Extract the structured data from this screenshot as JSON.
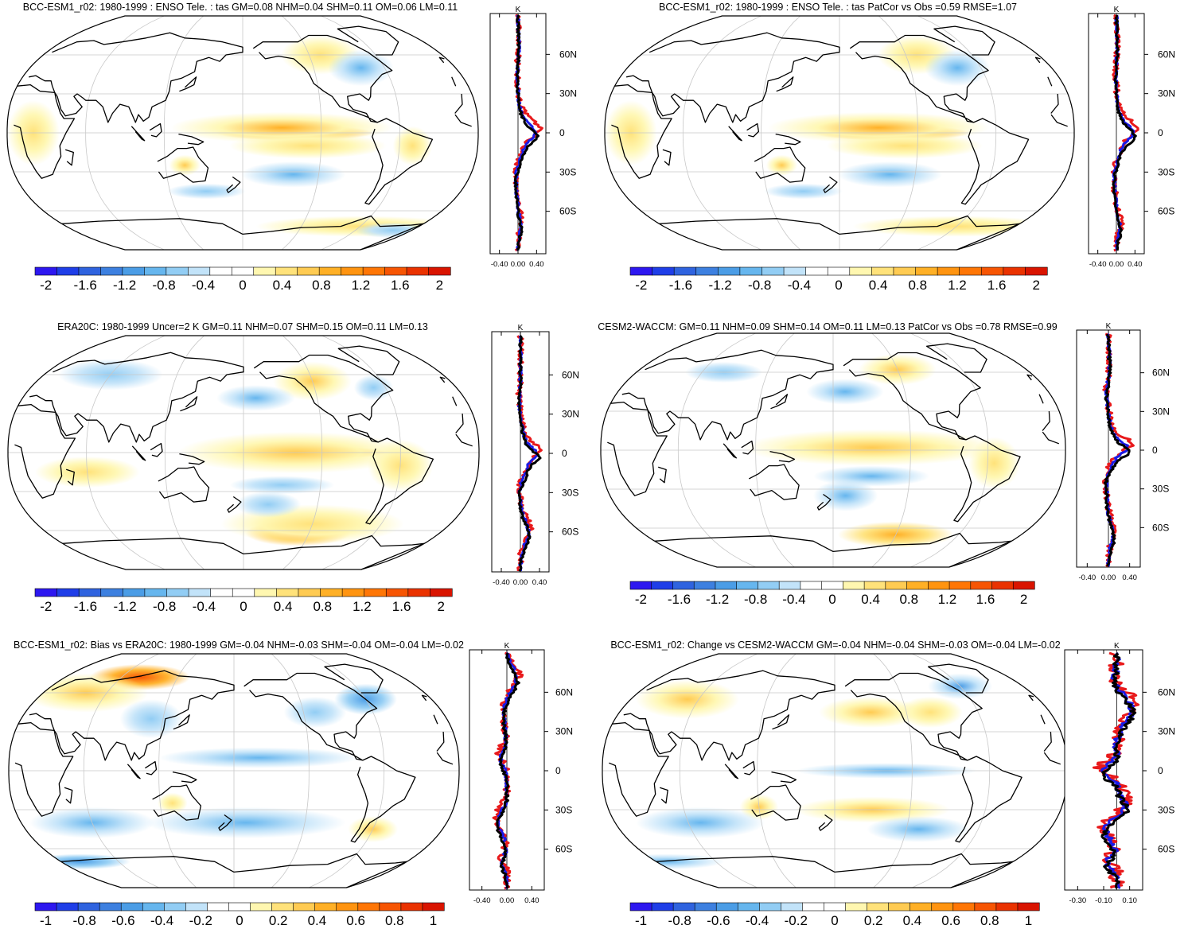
{
  "figure": {
    "zonal_axis_unit": "K",
    "lat_ticks": [
      "60N",
      "30N",
      "0",
      "30S",
      "60S"
    ]
  },
  "colors": {
    "model": "#e8191b",
    "obs": "#1a1ae6",
    "mean": "#000000",
    "land_outline": "#000000",
    "grid": "#c8c8c8"
  },
  "colorbars": {
    "full": {
      "colors": [
        "#2d17f0",
        "#1f3ee8",
        "#2f63df",
        "#3d80e0",
        "#4b9de6",
        "#66b6ee",
        "#92cdf4",
        "#c2e3f9",
        "#ffffff",
        "#ffffff",
        "#fff7b0",
        "#ffe27a",
        "#ffcb52",
        "#ffb026",
        "#ff9410",
        "#ff7605",
        "#f75503",
        "#ea3200",
        "#d91400"
      ],
      "labels": [
        "-2",
        "-1.6",
        "-1.2",
        "-0.8",
        "-0.4",
        "0",
        "0.4",
        "0.8",
        "1.2",
        "1.6",
        "2"
      ]
    },
    "diff": {
      "colors": [
        "#2d17f0",
        "#1f3ee8",
        "#2f63df",
        "#3d80e0",
        "#4b9de6",
        "#66b6ee",
        "#92cdf4",
        "#c2e3f9",
        "#ffffff",
        "#ffffff",
        "#fff7b0",
        "#ffe27a",
        "#ffcb52",
        "#ffb026",
        "#ff9410",
        "#ff7605",
        "#f75503",
        "#ea3200",
        "#d91400"
      ],
      "labels": [
        "-1",
        "-0.8",
        "-0.6",
        "-0.4",
        "-0.2",
        "0",
        "0.2",
        "0.4",
        "0.6",
        "0.8",
        "1"
      ]
    }
  },
  "chart_data": [
    {
      "type": "heatmap",
      "panel": "top-left",
      "title": "BCC-ESM1_r02: 1980-1999 : ENSO Tele. : tas GM=0.08 NHM=0.04 SHM=0.11 OM=0.06 LM=0.11",
      "colorbar": "full",
      "features": [
        {
          "type": "warm",
          "level": 0.9,
          "lon": -140,
          "lat": 0,
          "rlon": 60,
          "rlat": 6
        },
        {
          "type": "warm",
          "level": 0.5,
          "lon": -150,
          "lat": 4,
          "rlon": 85,
          "rlat": 12
        },
        {
          "type": "warm",
          "level": 0.3,
          "lon": -130,
          "lat": -10,
          "rlon": 60,
          "rlat": 10
        },
        {
          "type": "warm",
          "level": 0.35,
          "lon": 135,
          "lat": -25,
          "rlon": 12,
          "rlat": 8
        },
        {
          "type": "warm",
          "level": 0.3,
          "lon": -110,
          "lat": 60,
          "rlon": 30,
          "rlat": 15
        },
        {
          "type": "warm",
          "level": 0.25,
          "lon": 20,
          "lat": 0,
          "rlon": 20,
          "rlat": 25
        },
        {
          "type": "warm",
          "level": 0.25,
          "lon": -50,
          "lat": -10,
          "rlon": 15,
          "rlat": 15
        },
        {
          "type": "warm",
          "level": 0.3,
          "lon": -60,
          "lat": -72,
          "rlon": 80,
          "rlat": 8
        },
        {
          "type": "cool",
          "level": 0.35,
          "lon": -140,
          "lat": -32,
          "rlon": 40,
          "rlat": 10
        },
        {
          "type": "cool",
          "level": 0.25,
          "lon": 150,
          "lat": -45,
          "rlon": 30,
          "rlat": 6
        },
        {
          "type": "cool",
          "level": 0.35,
          "lon": -80,
          "lat": 50,
          "rlon": 25,
          "rlat": 14
        },
        {
          "type": "cool",
          "level": 0.25,
          "lon": -20,
          "lat": -75,
          "rlon": 30,
          "rlat": 6
        }
      ],
      "x_tick_labels": [
        "-0.40",
        "0.00",
        "0.40"
      ],
      "profile_xlim": [
        -0.6,
        0.6
      ]
    },
    {
      "type": "heatmap",
      "panel": "top-right",
      "title": "BCC-ESM1_r02: 1980-1999 : ENSO Tele. : tas PatCor vs Obs =0.59 RMSE=1.07",
      "colorbar": "full",
      "features": [
        {
          "type": "warm",
          "level": 0.9,
          "lon": -140,
          "lat": 0,
          "rlon": 60,
          "rlat": 6
        },
        {
          "type": "warm",
          "level": 0.5,
          "lon": -150,
          "lat": 4,
          "rlon": 85,
          "rlat": 12
        },
        {
          "type": "warm",
          "level": 0.3,
          "lon": -130,
          "lat": -10,
          "rlon": 60,
          "rlat": 10
        },
        {
          "type": "warm",
          "level": 0.35,
          "lon": 135,
          "lat": -25,
          "rlon": 12,
          "rlat": 8
        },
        {
          "type": "warm",
          "level": 0.3,
          "lon": -110,
          "lat": 60,
          "rlon": 30,
          "rlat": 15
        },
        {
          "type": "warm",
          "level": 0.25,
          "lon": 20,
          "lat": 0,
          "rlon": 20,
          "rlat": 25
        },
        {
          "type": "warm",
          "level": 0.3,
          "lon": -60,
          "lat": -72,
          "rlon": 80,
          "rlat": 8
        },
        {
          "type": "cool",
          "level": 0.35,
          "lon": -140,
          "lat": -32,
          "rlon": 40,
          "rlat": 10
        },
        {
          "type": "cool",
          "level": 0.25,
          "lon": 150,
          "lat": -45,
          "rlon": 30,
          "rlat": 6
        },
        {
          "type": "cool",
          "level": 0.35,
          "lon": -80,
          "lat": 50,
          "rlon": 25,
          "rlat": 14
        }
      ],
      "x_tick_labels": [
        "-0.40",
        "0.00",
        "0.40"
      ],
      "profile_xlim": [
        -0.6,
        0.6
      ]
    },
    {
      "type": "heatmap",
      "panel": "middle-left",
      "title": "ERA20C: 1980-1999 Uncer=2 K GM=0.11 NHM=0.07 SHM=0.15 OM=0.11 LM=0.13",
      "colorbar": "full",
      "features": [
        {
          "type": "warm",
          "level": 0.9,
          "lon": -130,
          "lat": 0,
          "rlon": 60,
          "rlat": 5
        },
        {
          "type": "warm",
          "level": 0.45,
          "lon": -140,
          "lat": 0,
          "rlon": 90,
          "rlat": 16
        },
        {
          "type": "warm",
          "level": 0.75,
          "lon": -130,
          "lat": -62,
          "rlon": 40,
          "rlat": 10
        },
        {
          "type": "warm",
          "level": 0.3,
          "lon": -120,
          "lat": -55,
          "rlon": 70,
          "rlat": 15
        },
        {
          "type": "warm",
          "level": 0.45,
          "lon": -120,
          "lat": 55,
          "rlon": 30,
          "rlat": 15
        },
        {
          "type": "warm",
          "level": 0.25,
          "lon": -60,
          "lat": -10,
          "rlon": 25,
          "rlat": 20
        },
        {
          "type": "warm",
          "level": 0.2,
          "lon": 60,
          "lat": -15,
          "rlon": 40,
          "rlat": 12
        },
        {
          "type": "cool",
          "level": 0.35,
          "lon": -170,
          "lat": 42,
          "rlon": 30,
          "rlat": 10
        },
        {
          "type": "cool",
          "level": 0.3,
          "lon": -150,
          "lat": -25,
          "rlon": 40,
          "rlat": 7
        },
        {
          "type": "cool",
          "level": 0.3,
          "lon": -160,
          "lat": -40,
          "rlon": 25,
          "rlat": 10
        },
        {
          "type": "cool",
          "level": 0.25,
          "lon": 60,
          "lat": 60,
          "rlon": 40,
          "rlat": 12
        },
        {
          "type": "cool",
          "level": 0.25,
          "lon": -70,
          "lat": 50,
          "rlon": 15,
          "rlat": 10
        }
      ],
      "x_tick_labels": [
        "-0.40",
        "0.00",
        "0.40"
      ],
      "profile_xlim": [
        -0.6,
        0.6
      ]
    },
    {
      "type": "heatmap",
      "panel": "middle-right",
      "title": "CESM2-WACCM: GM=0.11 NHM=0.09 SHM=0.14 OM=0.11 LM=0.13 PatCor vs Obs =0.78 RMSE=0.99",
      "colorbar": "full",
      "features": [
        {
          "type": "warm",
          "level": 0.8,
          "lon": -150,
          "lat": 2,
          "rlon": 70,
          "rlat": 5
        },
        {
          "type": "warm",
          "level": 0.45,
          "lon": -150,
          "lat": 2,
          "rlon": 100,
          "rlat": 14
        },
        {
          "type": "warm",
          "level": 0.6,
          "lon": -120,
          "lat": -65,
          "rlon": 45,
          "rlat": 10
        },
        {
          "type": "warm",
          "level": 0.4,
          "lon": -120,
          "lat": 62,
          "rlon": 30,
          "rlat": 12
        },
        {
          "type": "warm",
          "level": 0.25,
          "lon": -55,
          "lat": -10,
          "rlon": 20,
          "rlat": 20
        },
        {
          "type": "cool",
          "level": 0.35,
          "lon": -170,
          "lat": 45,
          "rlon": 30,
          "rlat": 10
        },
        {
          "type": "cool",
          "level": 0.35,
          "lon": -150,
          "lat": -20,
          "rlon": 45,
          "rlat": 8
        },
        {
          "type": "cool",
          "level": 0.35,
          "lon": -170,
          "lat": -35,
          "rlon": 25,
          "rlat": 12
        },
        {
          "type": "cool",
          "level": 0.25,
          "lon": 80,
          "lat": 60,
          "rlon": 30,
          "rlat": 8
        }
      ],
      "x_tick_labels": [
        "-0.40",
        "0.00",
        "0.40"
      ],
      "profile_xlim": [
        -0.6,
        0.6
      ]
    },
    {
      "type": "heatmap",
      "panel": "bottom-left",
      "title": "BCC-ESM1_r02: Bias vs ERA20C: 1980-1999 GM=-0.04 NHM=-0.03 SHM=-0.04 OM=-0.04 LM=-0.02",
      "colorbar": "diff",
      "features": [
        {
          "type": "warm",
          "level": 0.85,
          "lon": 80,
          "lat": 72,
          "rlon": 40,
          "rlat": 10
        },
        {
          "type": "warm",
          "level": 0.45,
          "lon": 40,
          "lat": 60,
          "rlon": 50,
          "rlat": 15
        },
        {
          "type": "warm",
          "level": 0.35,
          "lon": -60,
          "lat": -45,
          "rlon": 20,
          "rlat": 10
        },
        {
          "type": "warm",
          "level": 0.3,
          "lon": 130,
          "lat": -25,
          "rlon": 12,
          "rlat": 8
        },
        {
          "type": "cool",
          "level": 0.55,
          "lon": -60,
          "lat": 55,
          "rlon": 25,
          "rlat": 12
        },
        {
          "type": "cool",
          "level": 0.35,
          "lon": -160,
          "lat": 10,
          "rlon": 80,
          "rlat": 8
        },
        {
          "type": "cool",
          "level": 0.35,
          "lon": -170,
          "lat": -40,
          "rlon": 80,
          "rlat": 12
        },
        {
          "type": "cool",
          "level": 0.35,
          "lon": 60,
          "lat": -40,
          "rlon": 50,
          "rlat": 12
        },
        {
          "type": "cool",
          "level": 0.3,
          "lon": 110,
          "lat": 40,
          "rlon": 25,
          "rlat": 15
        },
        {
          "type": "cool",
          "level": 0.55,
          "lon": 20,
          "lat": -70,
          "rlon": 40,
          "rlat": 6
        },
        {
          "type": "cool",
          "level": 0.3,
          "lon": -110,
          "lat": 45,
          "rlon": 25,
          "rlat": 12
        }
      ],
      "x_tick_labels": [
        "-0.40",
        "0.00",
        "0.40"
      ],
      "profile_xlim": [
        -0.6,
        0.6
      ]
    },
    {
      "type": "heatmap",
      "panel": "bottom-right",
      "title": "BCC-ESM1_r02: Change vs CESM2-WACCM GM=-0.04 NHM=-0.04 SHM=-0.03 OM=-0.04 LM=-0.02",
      "colorbar": "diff",
      "features": [
        {
          "type": "warm",
          "level": 0.45,
          "lon": -150,
          "lat": 45,
          "rlon": 40,
          "rlat": 12
        },
        {
          "type": "warm",
          "level": 0.45,
          "lon": 120,
          "lat": -28,
          "rlon": 15,
          "rlat": 10
        },
        {
          "type": "warm",
          "level": 0.35,
          "lon": -150,
          "lat": -30,
          "rlon": 60,
          "rlat": 10
        },
        {
          "type": "warm",
          "level": 0.35,
          "lon": 50,
          "lat": 55,
          "rlon": 40,
          "rlat": 15
        },
        {
          "type": "warm",
          "level": 0.2,
          "lon": -100,
          "lat": 45,
          "rlon": 25,
          "rlat": 12
        },
        {
          "type": "cool",
          "level": 0.5,
          "lon": -60,
          "lat": 65,
          "rlon": 25,
          "rlat": 10
        },
        {
          "type": "cool",
          "level": 0.4,
          "lon": -140,
          "lat": 0,
          "rlon": 70,
          "rlat": 6
        },
        {
          "type": "cool",
          "level": 0.35,
          "lon": -110,
          "lat": -45,
          "rlon": 40,
          "rlat": 10
        },
        {
          "type": "cool",
          "level": 0.35,
          "lon": 70,
          "lat": -40,
          "rlon": 50,
          "rlat": 12
        },
        {
          "type": "cool",
          "level": 0.45,
          "lon": 10,
          "lat": -70,
          "rlon": 45,
          "rlat": 6
        }
      ],
      "x_tick_labels": [
        "-0.30",
        "-0.10",
        "0.10"
      ],
      "profile_xlim": [
        -0.4,
        0.2
      ]
    }
  ]
}
